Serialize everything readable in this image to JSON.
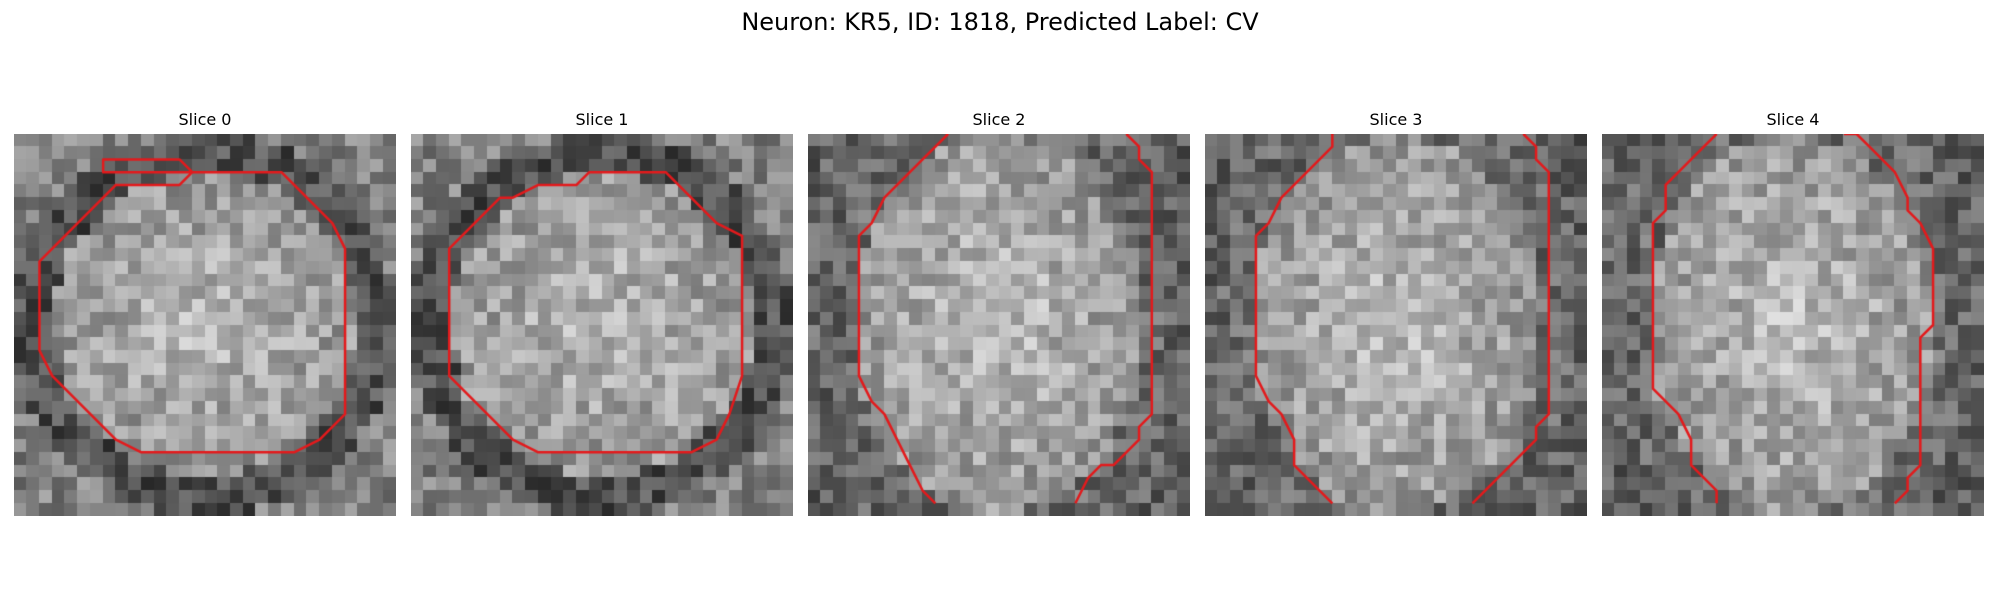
{
  "figure": {
    "title": "Neuron: KR5, ID: 1818, Predicted Label: CV"
  },
  "slices": [
    {
      "title": "Slice 0",
      "seed": 11,
      "contour": [
        [
          7,
          2
        ],
        [
          13,
          2
        ],
        [
          14,
          3
        ],
        [
          21,
          3
        ],
        [
          22,
          4
        ],
        [
          23,
          5
        ],
        [
          25,
          7
        ],
        [
          26,
          9
        ],
        [
          26,
          22
        ],
        [
          25,
          23
        ],
        [
          24,
          24
        ],
        [
          22,
          25
        ],
        [
          10,
          25
        ],
        [
          8,
          24
        ],
        [
          6,
          22
        ],
        [
          5,
          21
        ],
        [
          3,
          19
        ],
        [
          2,
          17
        ],
        [
          2,
          10
        ],
        [
          3,
          9
        ],
        [
          4,
          8
        ],
        [
          5,
          7
        ],
        [
          6,
          6
        ],
        [
          7,
          5
        ],
        [
          8,
          4
        ],
        [
          13,
          4
        ],
        [
          14,
          3
        ],
        [
          7,
          3
        ]
      ],
      "shape": "ring"
    },
    {
      "title": "Slice 1",
      "seed": 23,
      "contour": [
        [
          8,
          5
        ],
        [
          10,
          4
        ],
        [
          13,
          4
        ],
        [
          14,
          3
        ],
        [
          20,
          3
        ],
        [
          21,
          4
        ],
        [
          22,
          5
        ],
        [
          23,
          6
        ],
        [
          24,
          7
        ],
        [
          26,
          8
        ],
        [
          26,
          19
        ],
        [
          25,
          22
        ],
        [
          24,
          24
        ],
        [
          22,
          25
        ],
        [
          10,
          25
        ],
        [
          8,
          24
        ],
        [
          6,
          22
        ],
        [
          5,
          21
        ],
        [
          3,
          19
        ],
        [
          3,
          9
        ],
        [
          4,
          8
        ],
        [
          5,
          7
        ],
        [
          6,
          6
        ],
        [
          7,
          5
        ]
      ],
      "shape": "octagon"
    },
    {
      "title": "Slice 2",
      "seed": 37,
      "open": [
        [
          [
            11,
            0
          ],
          [
            9,
            2
          ],
          [
            8,
            3
          ],
          [
            7,
            4
          ],
          [
            6,
            5
          ],
          [
            5,
            7
          ],
          [
            4,
            8
          ],
          [
            4,
            19
          ],
          [
            5,
            21
          ],
          [
            6,
            22
          ],
          [
            7,
            24
          ],
          [
            8,
            26
          ],
          [
            9,
            28
          ],
          [
            10,
            29
          ]
        ],
        [
          [
            25,
            0
          ],
          [
            26,
            1
          ],
          [
            26,
            2
          ],
          [
            27,
            3
          ],
          [
            27,
            22
          ],
          [
            26,
            23
          ],
          [
            26,
            24
          ],
          [
            25,
            25
          ],
          [
            24,
            26
          ],
          [
            23,
            26
          ],
          [
            22,
            27
          ],
          [
            21,
            29
          ]
        ]
      ],
      "shape": "tall"
    },
    {
      "title": "Slice 3",
      "seed": 51,
      "open": [
        [
          [
            10,
            0
          ],
          [
            10,
            1
          ],
          [
            9,
            2
          ],
          [
            8,
            3
          ],
          [
            7,
            4
          ],
          [
            6,
            5
          ],
          [
            5,
            7
          ],
          [
            4,
            8
          ],
          [
            4,
            19
          ],
          [
            5,
            21
          ],
          [
            6,
            22
          ],
          [
            7,
            24
          ],
          [
            7,
            26
          ],
          [
            8,
            27
          ],
          [
            9,
            28
          ],
          [
            10,
            29
          ]
        ],
        [
          [
            25,
            0
          ],
          [
            26,
            1
          ],
          [
            26,
            2
          ],
          [
            27,
            3
          ],
          [
            27,
            22
          ],
          [
            26,
            23
          ],
          [
            26,
            24
          ],
          [
            25,
            25
          ],
          [
            24,
            26
          ],
          [
            22,
            28
          ],
          [
            21,
            29
          ]
        ]
      ],
      "shape": "tall"
    },
    {
      "title": "Slice 4",
      "seed": 67,
      "open": [
        [
          [
            9,
            0
          ],
          [
            8,
            1
          ],
          [
            7,
            2
          ],
          [
            6,
            3
          ],
          [
            5,
            4
          ],
          [
            5,
            6
          ],
          [
            4,
            7
          ],
          [
            4,
            20
          ],
          [
            5,
            21
          ],
          [
            6,
            22
          ],
          [
            7,
            24
          ],
          [
            7,
            26
          ],
          [
            8,
            27
          ],
          [
            9,
            28
          ],
          [
            9,
            29
          ]
        ],
        [
          [
            19,
            0
          ],
          [
            20,
            0
          ],
          [
            21,
            1
          ],
          [
            22,
            2
          ],
          [
            23,
            3
          ],
          [
            24,
            5
          ],
          [
            24,
            6
          ],
          [
            25,
            7
          ],
          [
            26,
            9
          ],
          [
            26,
            15
          ],
          [
            25,
            16
          ],
          [
            25,
            26
          ],
          [
            24,
            27
          ],
          [
            24,
            28
          ],
          [
            23,
            29
          ]
        ]
      ],
      "shape": "tall"
    }
  ],
  "colors": {
    "contour": "#e31a1c",
    "background": "#ffffff"
  }
}
